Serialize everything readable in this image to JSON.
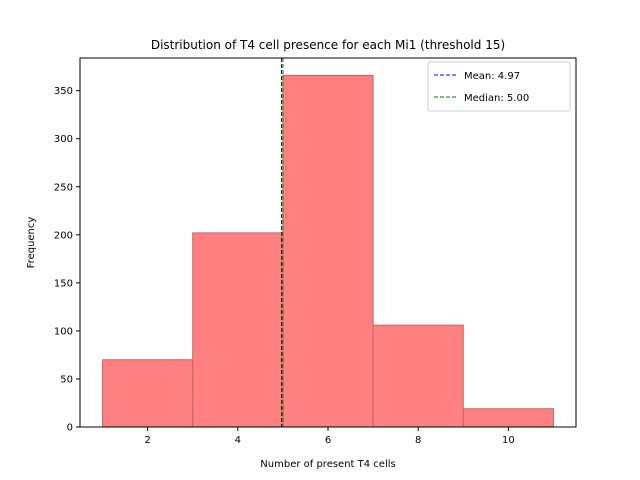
{
  "chart_data": {
    "type": "bar",
    "title": "Distribution of T4 cell presence for each Mi1 (threshold 15)",
    "xlabel": "Number of present T4 cells",
    "ylabel": "Frequency",
    "bins": [
      {
        "start": 1,
        "end": 3,
        "value": 70
      },
      {
        "start": 3,
        "end": 5,
        "value": 202
      },
      {
        "start": 5,
        "end": 7,
        "value": 366
      },
      {
        "start": 7,
        "end": 9,
        "value": 106
      },
      {
        "start": 9,
        "end": 11,
        "value": 19
      }
    ],
    "xlim": [
      0.5,
      11.5
    ],
    "ylim": [
      0,
      384
    ],
    "xticks": [
      2,
      4,
      6,
      8,
      10
    ],
    "yticks": [
      0,
      50,
      100,
      150,
      200,
      250,
      300,
      350
    ],
    "bar_color": "#ff8080",
    "bar_edge_color": "#c86464",
    "legend_position": "top-right",
    "lines": [
      {
        "label": "Mean: 4.97",
        "x": 4.97,
        "color": "#0000ff"
      },
      {
        "label": "Median: 5.00",
        "x": 5.0,
        "color": "#008000"
      }
    ]
  }
}
